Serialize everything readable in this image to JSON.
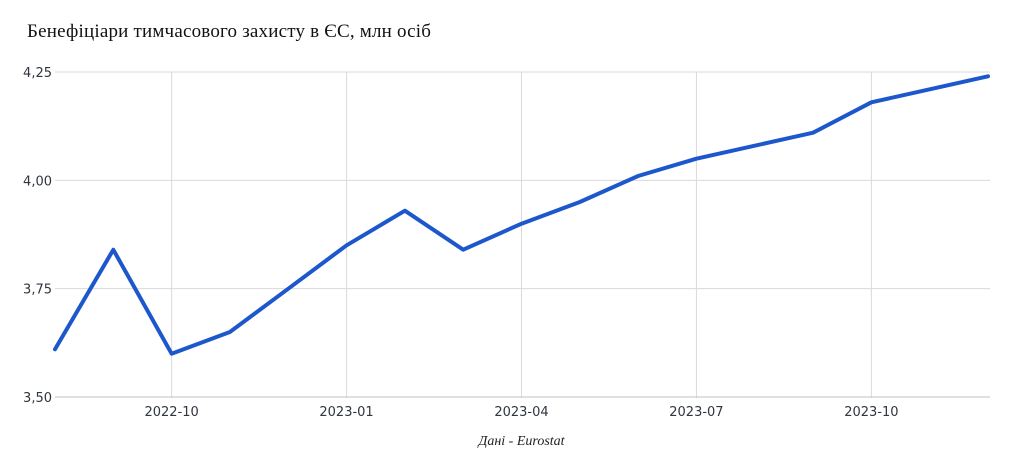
{
  "title": "Бенефіціари тимчасового захисту в ЄС, млн осіб",
  "source_note": "Дані - Eurostat",
  "colors": {
    "line": "#1d57cc",
    "grid": "#dadada",
    "axis": "#c2c2c2",
    "tick_text": "#30363f",
    "title_text": "#111111",
    "source_text": "#222222",
    "background": "#ffffff"
  },
  "chart_data": {
    "type": "line",
    "title": "Бенефіціари тимчасового захисту в ЄС, млн осіб",
    "xlabel": "",
    "ylabel": "",
    "x": [
      "2022-08",
      "2022-09",
      "2022-10",
      "2022-11",
      "2022-12",
      "2023-01",
      "2023-02",
      "2023-03",
      "2023-04",
      "2023-05",
      "2023-06",
      "2023-07",
      "2023-08",
      "2023-09",
      "2023-10",
      "2023-11",
      "2023-12"
    ],
    "values": [
      3.61,
      3.84,
      3.6,
      3.65,
      3.75,
      3.85,
      3.93,
      3.84,
      3.9,
      3.95,
      4.01,
      4.05,
      4.08,
      4.11,
      4.18,
      4.21,
      4.24
    ],
    "ylim": [
      3.5,
      4.25
    ],
    "y_ticks": [
      3.5,
      3.75,
      4.0,
      4.25
    ],
    "y_tick_labels": [
      "3,50",
      "3,75",
      "4,00",
      "4,25"
    ],
    "x_ticks": [
      "2022-10",
      "2023-01",
      "2023-04",
      "2023-07",
      "2023-10"
    ],
    "grid": true,
    "legend": "none",
    "line_width": 4
  }
}
